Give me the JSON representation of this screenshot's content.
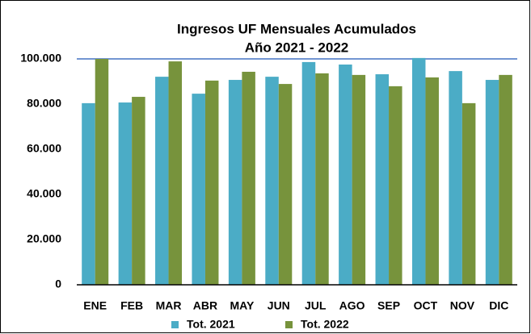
{
  "chart_data": {
    "type": "bar",
    "title": "Ingresos UF Mensuales Acumulados",
    "subtitle": "Año 2021 - 2022",
    "categories": [
      "ENE",
      "FEB",
      "MAR",
      "ABR",
      "MAY",
      "JUN",
      "JUL",
      "AGO",
      "SEP",
      "OCT",
      "NOV",
      "DIC"
    ],
    "series": [
      {
        "name": "Tot. 2021",
        "color": "#4bacc6",
        "values": [
          80400,
          80700,
          92100,
          84600,
          90700,
          92100,
          98600,
          97500,
          93200,
          100400,
          94600,
          90700
        ]
      },
      {
        "name": "Tot. 2022",
        "color": "#77933c",
        "values": [
          100000,
          83200,
          98900,
          90400,
          94300,
          88900,
          93600,
          92900,
          87900,
          91800,
          80400,
          92900
        ]
      }
    ],
    "ylim": [
      0,
      100000
    ],
    "yticks": [
      0,
      {
        "value": 20000,
        "label": "20.000"
      },
      {
        "value": 40000,
        "label": "40.000"
      },
      {
        "value": 60000,
        "label": "60.000"
      },
      {
        "value": 80000,
        "label": "80.000"
      },
      {
        "value": 100000,
        "label": "100.000"
      }
    ],
    "legend": "bottom"
  }
}
